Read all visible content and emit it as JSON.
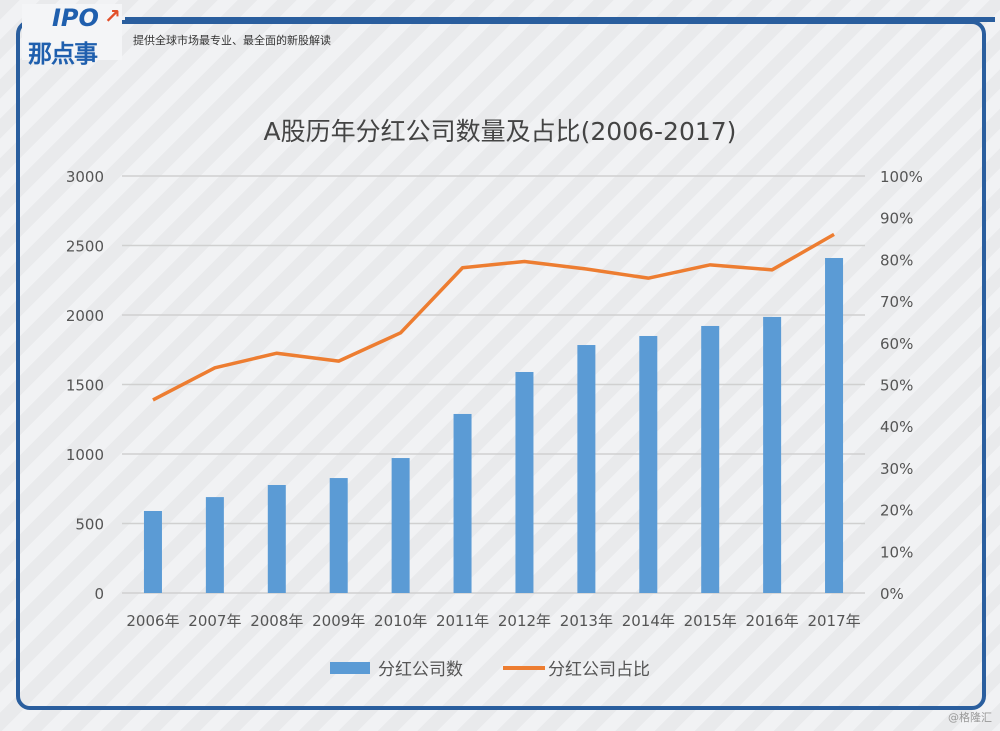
{
  "header": {
    "logo_text": "IPO那点事",
    "slogan": "提供全球市场最专业、最全面的新股解读"
  },
  "watermark": "@格隆汇",
  "chart_data": {
    "type": "bar+line",
    "title": "A股历年分红公司数量及占比(2006-2017)",
    "categories": [
      "2006年",
      "2007年",
      "2008年",
      "2009年",
      "2010年",
      "2011年",
      "2012年",
      "2013年",
      "2014年",
      "2015年",
      "2016年",
      "2017年"
    ],
    "series": [
      {
        "name": "分红公司数",
        "type": "bar",
        "axis": "left",
        "color": "#5b9bd5",
        "values": [
          590,
          690,
          777,
          827,
          971,
          1288,
          1590,
          1784,
          1849,
          1921,
          1986,
          2410
        ]
      },
      {
        "name": "分红公司占比",
        "type": "line",
        "axis": "right",
        "color": "#ed7d31",
        "values": [
          46.3,
          54,
          57.5,
          55.6,
          62.4,
          78,
          79.5,
          77.7,
          75.5,
          78.7,
          77.5,
          86
        ]
      }
    ],
    "left_axis": {
      "ylim": [
        0,
        3000
      ],
      "ticks": [
        "0",
        "500",
        "1000",
        "1500",
        "2000",
        "2500",
        "3000"
      ]
    },
    "right_axis": {
      "ylim": [
        0,
        100
      ],
      "ticks": [
        "0%",
        "10%",
        "20%",
        "30%",
        "40%",
        "50%",
        "60%",
        "70%",
        "80%",
        "90%",
        "100%"
      ]
    },
    "grid": true,
    "legend_position": "bottom"
  }
}
